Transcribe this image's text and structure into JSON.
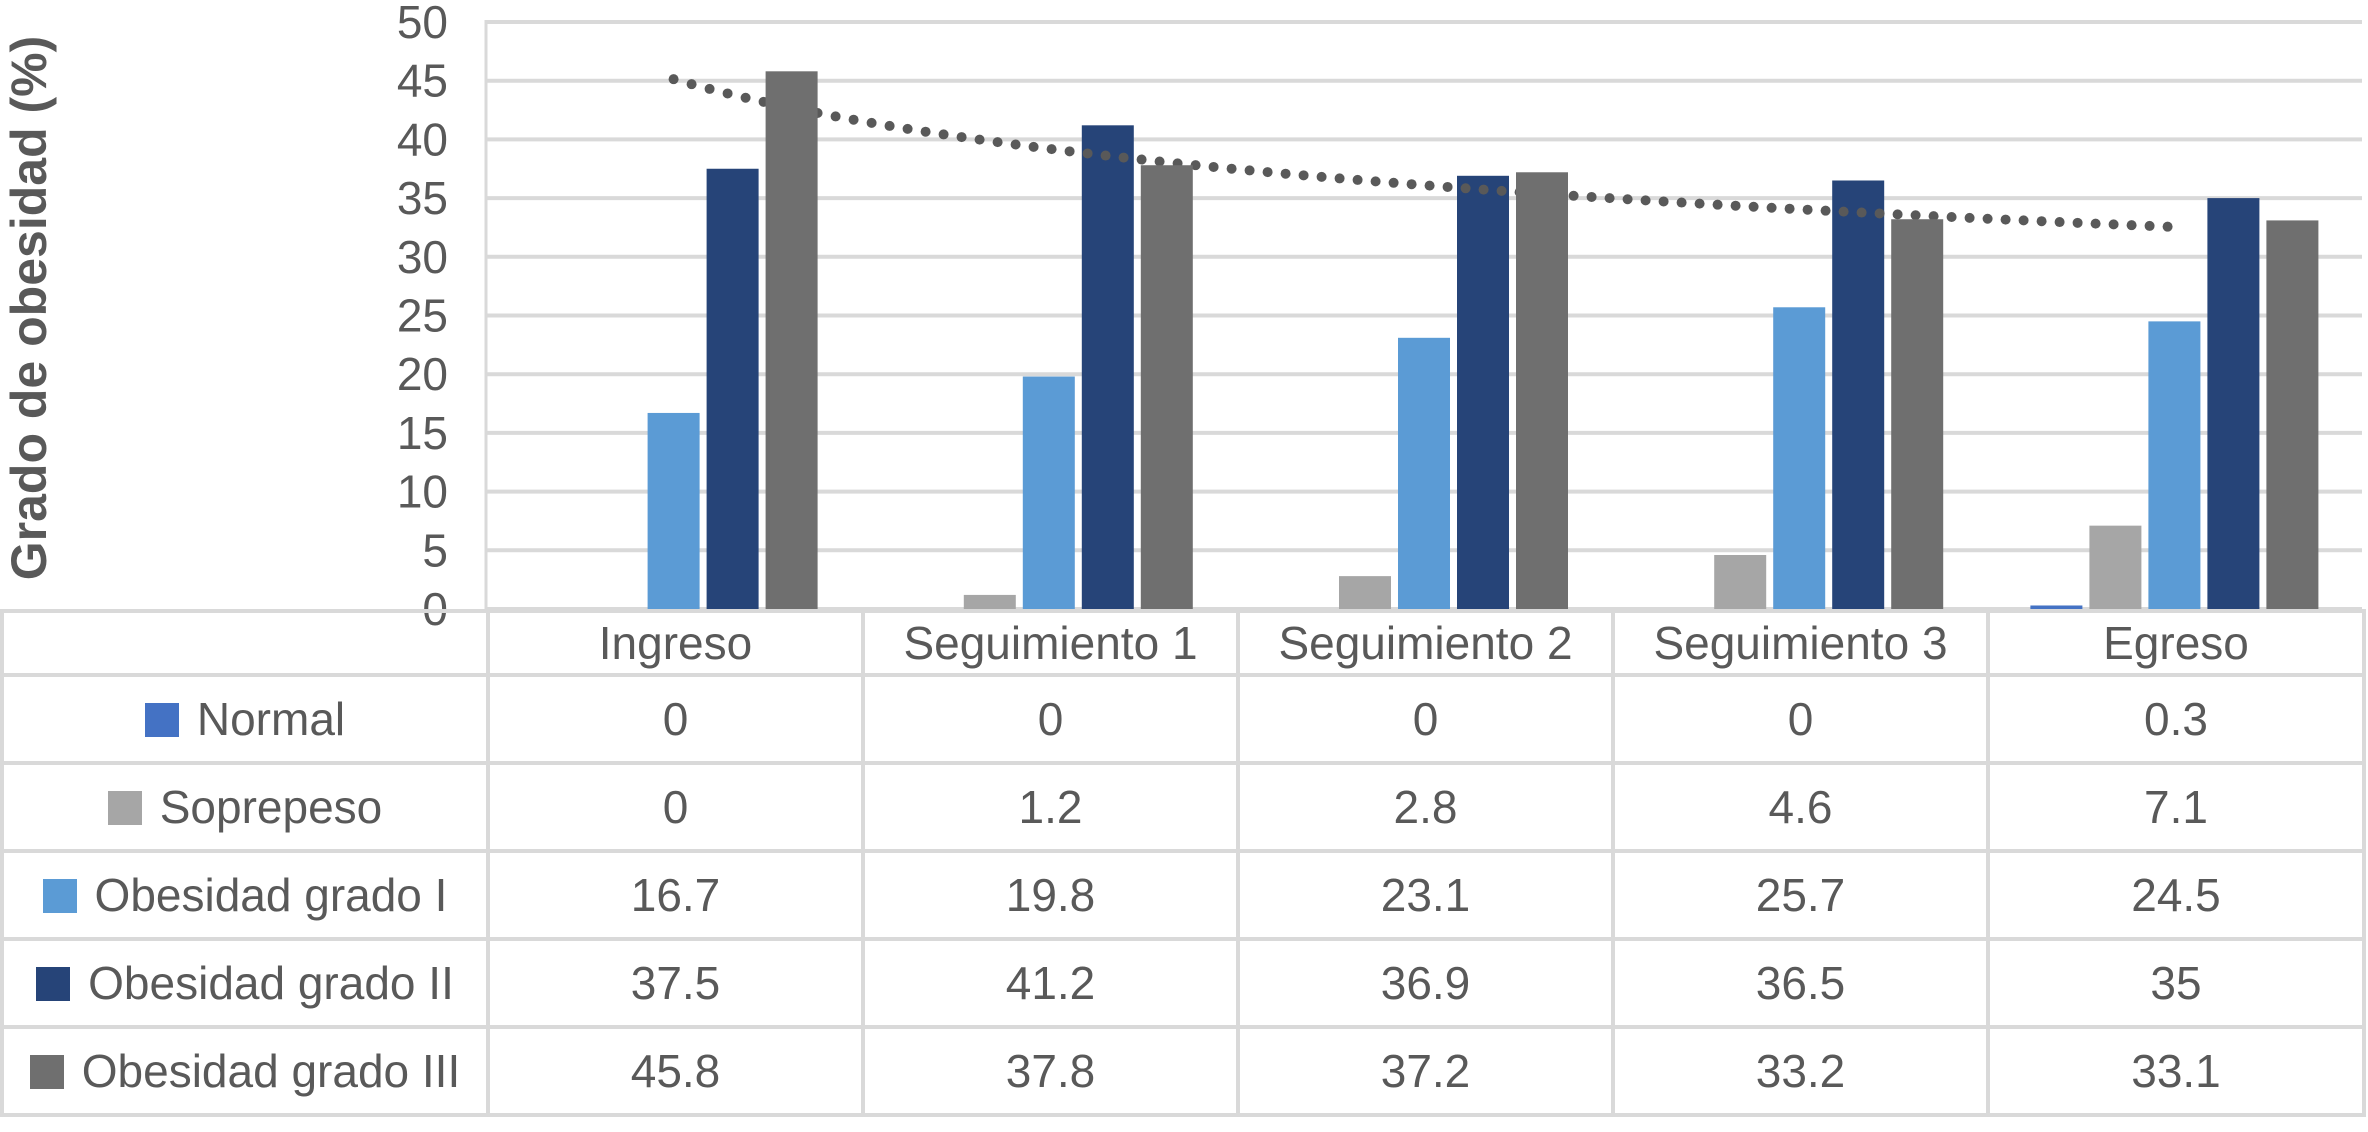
{
  "chart_data": {
    "type": "bar",
    "title": "",
    "xlabel": "",
    "ylabel": "Grado de obesidad (%)",
    "ylim": [
      0,
      50
    ],
    "yticks": [
      0,
      5,
      10,
      15,
      20,
      25,
      30,
      35,
      40,
      45,
      50
    ],
    "grid": true,
    "legend_position": "table-rows-left",
    "categories": [
      "Ingreso",
      "Seguimiento 1",
      "Seguimiento 2",
      "Seguimiento 3",
      "Egreso"
    ],
    "series": [
      {
        "name": "Normal",
        "color": "#4472C4",
        "values": [
          0,
          0,
          0,
          0,
          0.3
        ]
      },
      {
        "name": "Soprepeso",
        "color": "#A6A6A6",
        "values": [
          0,
          1.2,
          2.8,
          4.6,
          7.1
        ]
      },
      {
        "name": "Obesidad grado I",
        "color": "#5B9BD5",
        "values": [
          16.7,
          19.8,
          23.1,
          25.7,
          24.5
        ]
      },
      {
        "name": "Obesidad grado II",
        "color": "#264478",
        "values": [
          37.5,
          41.2,
          36.9,
          36.5,
          35
        ]
      },
      {
        "name": "Obesidad grado III",
        "color": "#6F6F6F",
        "values": [
          45.8,
          37.8,
          37.2,
          33.2,
          33.1
        ]
      }
    ],
    "trendline": {
      "on_series": "Obesidad grado III",
      "kind": "power",
      "style": "dotted",
      "color": "#595959"
    }
  },
  "colors": {
    "text": "#595959",
    "gridline": "#D9D9D9",
    "table_border": "#D9D9D9",
    "background": "#FFFFFF"
  }
}
